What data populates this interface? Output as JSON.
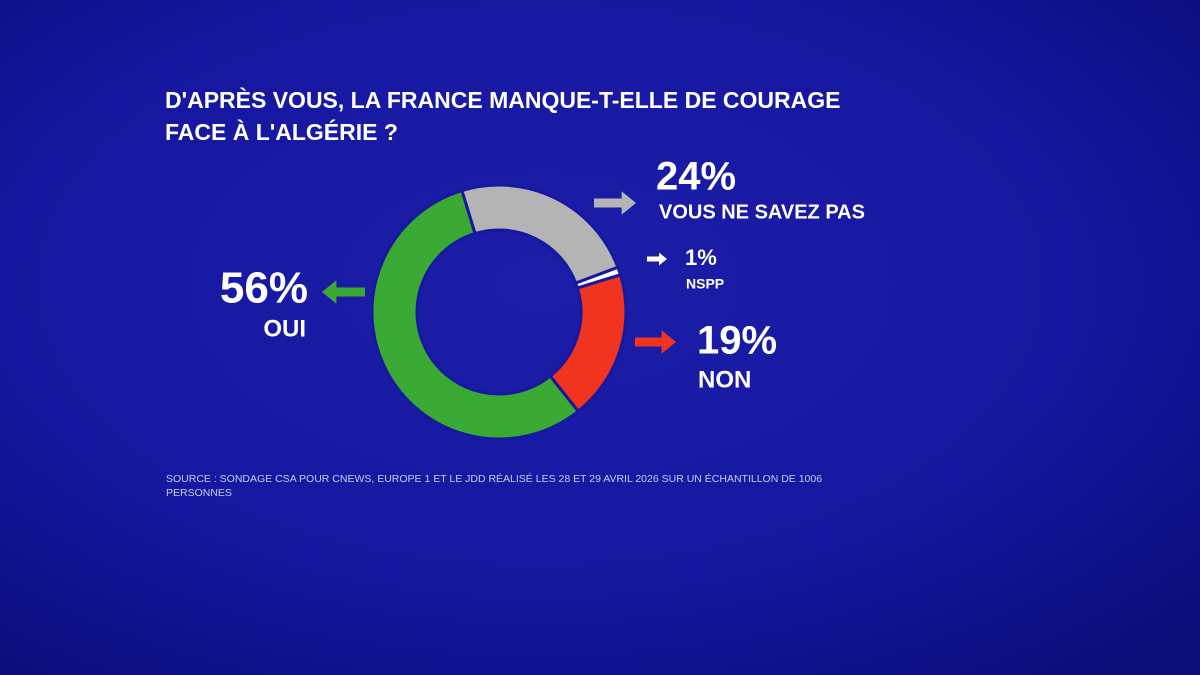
{
  "chart_data": {
    "type": "pie",
    "title": [
      "D'APRÈS VOUS, LA FRANCE MANQUE-T-ELLE DE COURAGE",
      "FACE À L'ALGÉRIE ?"
    ],
    "categories": [
      "OUI",
      "VOUS NE SAVEZ PAS",
      "NSPP",
      "NON"
    ],
    "values": [
      56,
      24,
      1,
      19
    ],
    "value_labels": [
      "56%",
      "24%",
      "1%",
      "19%"
    ],
    "colors": [
      "#3aaa35",
      "#b4b4b4",
      "#ffffff",
      "#f0341f"
    ],
    "donut": true,
    "source": "SOURCE : SONDAGE CSA POUR CNEWS, EUROPE 1 ET LE JDD RÉALISÉ LES 28 ET 29 AVRIL 2026 SUR UN ÉCHANTILLON DE 1006 PERSONNES"
  }
}
